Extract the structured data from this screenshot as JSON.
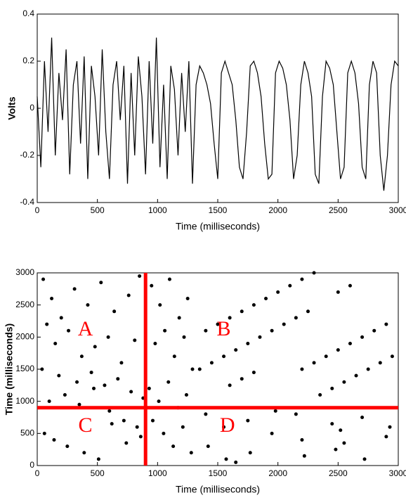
{
  "chart_data": [
    {
      "type": "line",
      "ylabel": "Volts",
      "xlabel": "Time (milliseconds)",
      "xlim": [
        0,
        3000
      ],
      "xticks": [
        0,
        500,
        1000,
        1500,
        2000,
        2500,
        3000
      ],
      "ylim": [
        -0.4,
        0.4
      ],
      "yticks": [
        -0.4,
        -0.2,
        0,
        0.2,
        0.4
      ],
      "grid": false,
      "series": [
        {
          "color": "#000000",
          "x": [
            0,
            30,
            60,
            90,
            120,
            150,
            180,
            210,
            240,
            270,
            300,
            330,
            360,
            390,
            420,
            450,
            480,
            510,
            540,
            570,
            600,
            630,
            660,
            690,
            720,
            750,
            780,
            810,
            840,
            870,
            900,
            930,
            960,
            990,
            1020,
            1050,
            1080,
            1110,
            1140,
            1170,
            1200,
            1230,
            1260,
            1290,
            1320,
            1350,
            1380,
            1410,
            1440,
            1470,
            1500,
            1530,
            1560,
            1590,
            1620,
            1650,
            1680,
            1710,
            1740,
            1770,
            1800,
            1830,
            1860,
            1890,
            1920,
            1950,
            1980,
            2010,
            2040,
            2070,
            2100,
            2130,
            2160,
            2190,
            2220,
            2250,
            2280,
            2310,
            2340,
            2370,
            2400,
            2430,
            2460,
            2490,
            2520,
            2550,
            2580,
            2610,
            2640,
            2670,
            2700,
            2730,
            2760,
            2790,
            2820,
            2850,
            2880,
            2910,
            2940,
            2970,
            3000
          ],
          "values": [
            0.05,
            -0.25,
            0.2,
            -0.1,
            0.3,
            -0.2,
            0.15,
            -0.05,
            0.25,
            -0.28,
            0.1,
            0.2,
            -0.15,
            0.22,
            -0.3,
            0.18,
            0.05,
            -0.2,
            0.25,
            -0.1,
            -0.3,
            0.1,
            0.2,
            -0.05,
            0.18,
            -0.32,
            0.15,
            -0.2,
            0.22,
            0.05,
            -0.28,
            0.2,
            -0.15,
            0.3,
            -0.25,
            0.1,
            -0.3,
            0.18,
            0.08,
            -0.2,
            0.15,
            -0.1,
            0.2,
            -0.32,
            0.1,
            0.18,
            0.15,
            0.1,
            0.02,
            -0.15,
            -0.3,
            0.15,
            0.2,
            0.15,
            0.1,
            -0.05,
            -0.25,
            -0.3,
            -0.1,
            0.18,
            0.2,
            0.15,
            0.05,
            -0.15,
            -0.3,
            -0.28,
            0.15,
            0.2,
            0.17,
            0.1,
            -0.05,
            -0.3,
            -0.2,
            0.1,
            0.2,
            0.15,
            0.05,
            -0.28,
            -0.32,
            0.05,
            0.2,
            0.17,
            0.1,
            -0.1,
            -0.3,
            -0.25,
            0.15,
            0.2,
            0.15,
            0.02,
            -0.25,
            -0.3,
            0.1,
            0.2,
            0.15,
            -0.2,
            -0.35,
            -0.2,
            0.1,
            0.2,
            0.18
          ]
        }
      ]
    },
    {
      "type": "scatter",
      "ylabel": "Time (milliseconds)",
      "xlabel": "Time (milliseconds)",
      "xlim": [
        0,
        3000
      ],
      "xticks": [
        0,
        500,
        1000,
        1500,
        2000,
        2500,
        3000
      ],
      "ylim": [
        0,
        3000
      ],
      "yticks": [
        0,
        500,
        1000,
        1500,
        2000,
        2500,
        3000
      ],
      "grid": false,
      "series": [
        {
          "color": "#000000",
          "x": [
            50,
            120,
            200,
            310,
            420,
            530,
            640,
            760,
            850,
            80,
            150,
            260,
            370,
            480,
            590,
            700,
            810,
            40,
            180,
            330,
            450,
            560,
            670,
            780,
            880,
            100,
            230,
            350,
            470,
            600,
            720,
            830,
            60,
            140,
            250,
            390,
            510,
            620,
            740,
            860,
            950,
            1020,
            1100,
            1180,
            1250,
            980,
            1060,
            1140,
            1220,
            1290,
            930,
            1010,
            1090,
            1170,
            1240,
            960,
            1050,
            1130,
            1210,
            1280,
            1350,
            1450,
            1550,
            1650,
            1750,
            1850,
            1950,
            2050,
            2150,
            2250,
            1400,
            1500,
            1600,
            1700,
            1800,
            1900,
            2000,
            2100,
            2200,
            2300,
            2200,
            2300,
            2400,
            2500,
            2600,
            2700,
            2800,
            2900,
            2350,
            2450,
            2550,
            2650,
            2750,
            2850,
            2950,
            1600,
            1700,
            1800,
            2500,
            2600,
            1400,
            1420,
            1550,
            1570,
            1750,
            1770,
            1950,
            1980,
            2200,
            2220,
            2450,
            2480,
            2520,
            2550,
            2700,
            2720,
            2900,
            2930,
            2150,
            1650
          ],
          "values": [
            2900,
            2600,
            2300,
            2750,
            2500,
            2850,
            2400,
            2650,
            2950,
            2200,
            1900,
            2100,
            1700,
            1850,
            2000,
            1600,
            1950,
            1500,
            1400,
            1300,
            1450,
            1250,
            1350,
            1150,
            1050,
            1000,
            1100,
            950,
            1200,
            850,
            700,
            600,
            500,
            400,
            300,
            200,
            100,
            650,
            350,
            450,
            2800,
            2500,
            2900,
            2300,
            2600,
            1900,
            2100,
            1700,
            2000,
            1500,
            1200,
            1000,
            1300,
            900,
            1100,
            700,
            500,
            300,
            600,
            200,
            1500,
            1600,
            1700,
            1800,
            1900,
            2000,
            2100,
            2200,
            2300,
            2400,
            2100,
            2200,
            2300,
            2400,
            2500,
            2600,
            2700,
            2800,
            2900,
            3000,
            1500,
            1600,
            1700,
            1800,
            1900,
            2000,
            2100,
            2200,
            1100,
            1200,
            1300,
            1400,
            1500,
            1600,
            1700,
            1250,
            1350,
            1450,
            2700,
            2800,
            800,
            300,
            600,
            100,
            700,
            200,
            500,
            850,
            400,
            150,
            650,
            250,
            550,
            350,
            750,
            100,
            450,
            600,
            800,
            50
          ]
        }
      ],
      "reference_lines": [
        {
          "axis": "x",
          "value": 900,
          "color": "#ff0000"
        },
        {
          "axis": "y",
          "value": 900,
          "color": "#ff0000"
        }
      ],
      "annotations": [
        {
          "text": "A",
          "x": 400,
          "y": 2100,
          "color": "#ff0000"
        },
        {
          "text": "B",
          "x": 1550,
          "y": 2100,
          "color": "#ff0000"
        },
        {
          "text": "C",
          "x": 400,
          "y": 600,
          "color": "#ff0000"
        },
        {
          "text": "D",
          "x": 1580,
          "y": 600,
          "color": "#ff0000"
        }
      ]
    }
  ]
}
